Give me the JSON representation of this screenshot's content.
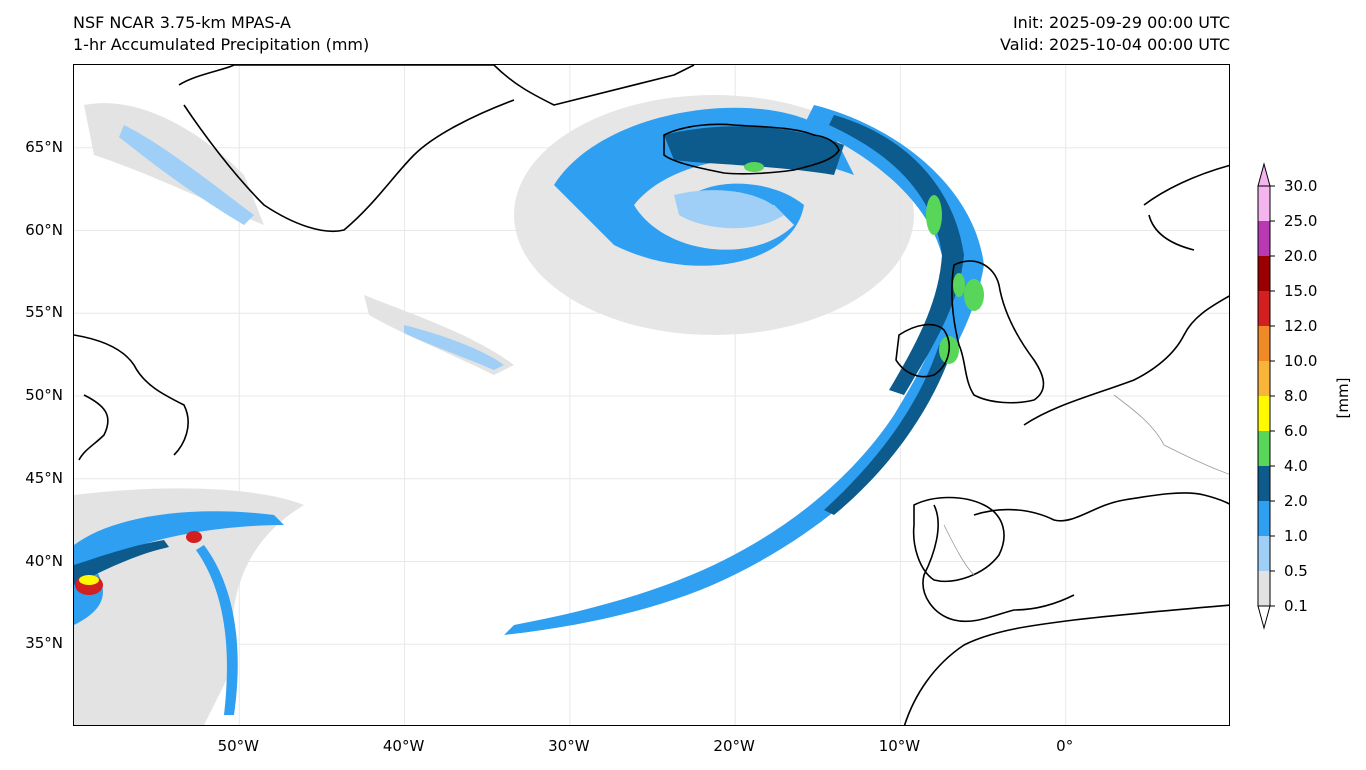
{
  "title": {
    "model": "NSF NCAR 3.75-km MPAS-A",
    "field": "1-hr Accumulated Precipitation (mm)",
    "init": "Init: 2025-09-29 00:00 UTC",
    "valid": "Valid: 2025-10-04 00:00 UTC"
  },
  "map": {
    "projection": "plate-carree",
    "lon_range": [
      -60,
      10
    ],
    "lat_range": [
      30,
      70
    ],
    "lat_ticks": [
      {
        "value": 65,
        "label": "65°N"
      },
      {
        "value": 60,
        "label": "60°N"
      },
      {
        "value": 55,
        "label": "55°N"
      },
      {
        "value": 50,
        "label": "50°N"
      },
      {
        "value": 45,
        "label": "45°N"
      },
      {
        "value": 40,
        "label": "40°N"
      },
      {
        "value": 35,
        "label": "35°N"
      }
    ],
    "lon_ticks": [
      {
        "value": -50,
        "label": "50°W"
      },
      {
        "value": -40,
        "label": "40°W"
      },
      {
        "value": -30,
        "label": "30°W"
      },
      {
        "value": -20,
        "label": "20°W"
      },
      {
        "value": -10,
        "label": "10°W"
      },
      {
        "value": 0,
        "label": "0°"
      }
    ],
    "gridlines": true,
    "coastline_color": "#000000",
    "border_color": "#9a9a9a"
  },
  "colorbar": {
    "units": "[mm]",
    "orientation": "vertical",
    "extend": "both",
    "levels": [
      "0.1",
      "0.5",
      "1.0",
      "2.0",
      "4.0",
      "6.0",
      "8.0",
      "10.0",
      "12.0",
      "15.0",
      "20.0",
      "25.0",
      "30.0"
    ],
    "colors": [
      "#e3e3e3",
      "#9fcff7",
      "#2f9ff2",
      "#0c5b8c",
      "#57d65a",
      "#fffa00",
      "#f8b53a",
      "#ef8a27",
      "#d21f1f",
      "#9b0000",
      "#b938b4",
      "#f4b4ee"
    ],
    "under_color": "#ffffff",
    "over_color": "#f4b4ee"
  }
}
